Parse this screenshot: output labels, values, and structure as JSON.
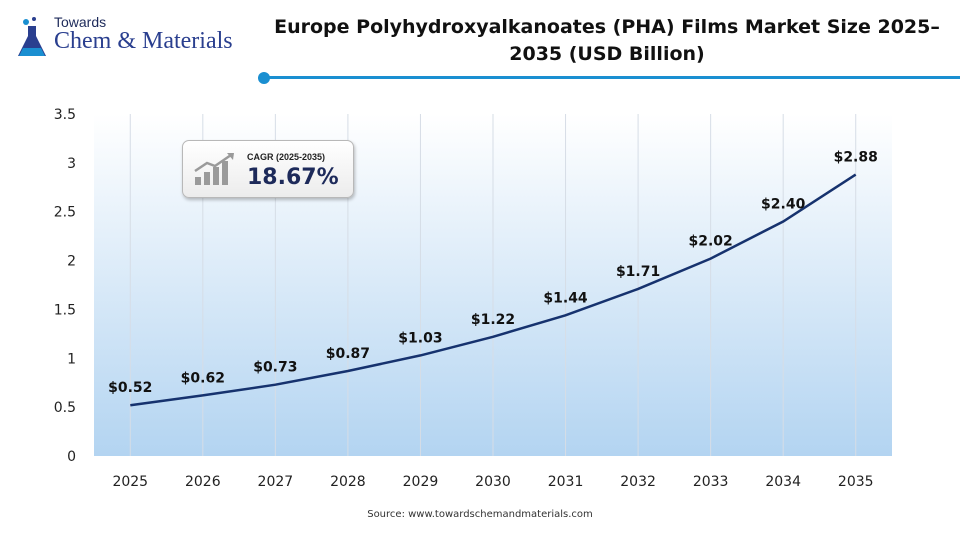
{
  "logo": {
    "top": "Towards",
    "main": "Chem & Materials"
  },
  "title": "Europe Polyhydroxyalkanoates (PHA) Films Market  Size 2025–2035 (USD Billion)",
  "cagr": {
    "label": "CAGR (2025-2035)",
    "value": "18.67%"
  },
  "source": "Source:  www.towardschemandmaterials.com",
  "colors": {
    "line": "#16326e",
    "accent": "#1a8fd1",
    "area_top": "#ffffff",
    "area_bottom": "#b3d4f1"
  },
  "chart_data": {
    "type": "line",
    "title": "Europe Polyhydroxyalkanoates (PHA) Films Market  Size 2025–2035 (USD Billion)",
    "x": [
      "2025",
      "2026",
      "2027",
      "2028",
      "2029",
      "2030",
      "2031",
      "2032",
      "2033",
      "2034",
      "2035"
    ],
    "values": [
      0.52,
      0.62,
      0.73,
      0.87,
      1.03,
      1.22,
      1.44,
      1.71,
      2.02,
      2.4,
      2.88
    ],
    "data_labels": [
      "$0.52",
      "$0.62",
      "$0.73",
      "$0.87",
      "$1.03",
      "$1.22",
      "$1.44",
      "$1.71",
      "$2.02",
      "$2.40",
      "$2.88"
    ],
    "yticks": [
      "0",
      "0.5",
      "1",
      "1.5",
      "2",
      "2.5",
      "3",
      "3.5"
    ],
    "ylim": [
      0,
      3.5
    ],
    "xlabel": "",
    "ylabel": "",
    "grid": "vertical-lines"
  }
}
